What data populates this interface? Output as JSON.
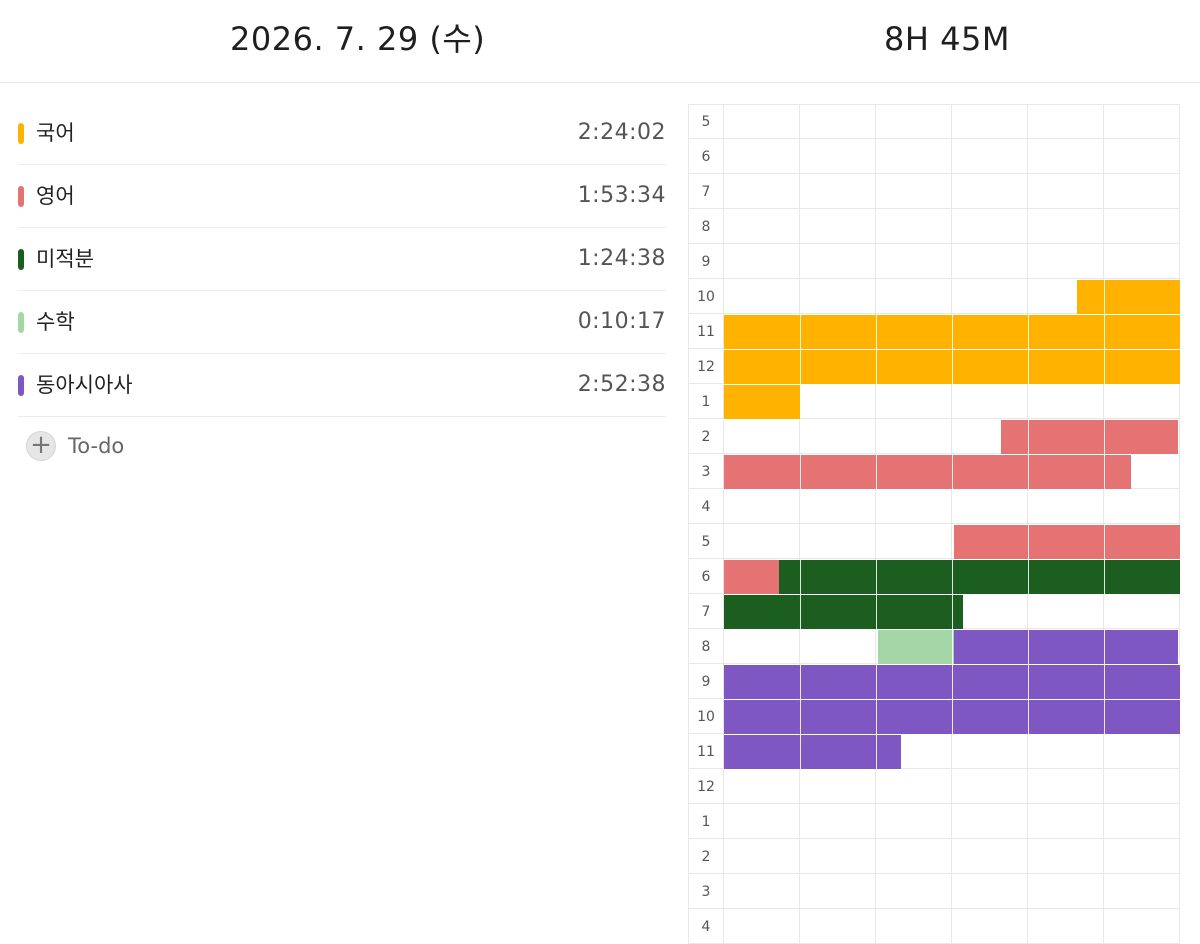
{
  "header": {
    "date": "2026. 7. 29 (수)",
    "total_time": "8H 45M"
  },
  "subjects": [
    {
      "name": "국어",
      "time": "2:24:02",
      "color": "#FFB300"
    },
    {
      "name": "영어",
      "time": "1:53:34",
      "color": "#E57373"
    },
    {
      "name": "미적분",
      "time": "1:24:38",
      "color": "#1B5E20"
    },
    {
      "name": "수학",
      "time": "0:10:17",
      "color": "#A5D6A7"
    },
    {
      "name": "동아시아사",
      "time": "2:52:38",
      "color": "#7E57C2"
    }
  ],
  "todo": {
    "icon": "plus-icon",
    "label": "To-do"
  },
  "timetable": {
    "hours": [
      "5",
      "6",
      "7",
      "8",
      "9",
      "10",
      "11",
      "12",
      "1",
      "2",
      "3",
      "4",
      "5",
      "6",
      "7",
      "8",
      "9",
      "10",
      "11",
      "12",
      "1",
      "2",
      "3",
      "4"
    ],
    "slots_per_hour": 6,
    "sessions": [
      {
        "subject": "국어",
        "row": 5,
        "start": 4.65,
        "end": 6.0
      },
      {
        "subject": "국어",
        "row": 6,
        "start": 0,
        "end": 6.0
      },
      {
        "subject": "국어",
        "row": 7,
        "start": 0,
        "end": 6.0
      },
      {
        "subject": "국어",
        "row": 8,
        "start": 0,
        "end": 1.0
      },
      {
        "subject": "영어",
        "row": 9,
        "start": 3.65,
        "end": 5.97
      },
      {
        "subject": "영어",
        "row": 10,
        "start": 0,
        "end": 5.35
      },
      {
        "subject": "영어",
        "row": 12,
        "start": 3.03,
        "end": 6.0
      },
      {
        "subject": "영어",
        "row": 13,
        "start": 0,
        "end": 0.72
      },
      {
        "subject": "미적분",
        "row": 13,
        "start": 0.72,
        "end": 6.0
      },
      {
        "subject": "미적분",
        "row": 14,
        "start": 0,
        "end": 3.15
      },
      {
        "subject": "수학",
        "row": 15,
        "start": 2.02,
        "end": 3.03
      },
      {
        "subject": "동아시아사",
        "row": 15,
        "start": 3.03,
        "end": 5.97
      },
      {
        "subject": "동아시아사",
        "row": 16,
        "start": 0,
        "end": 6.0
      },
      {
        "subject": "동아시아사",
        "row": 17,
        "start": 0,
        "end": 6.0
      },
      {
        "subject": "동아시아사",
        "row": 18,
        "start": 0,
        "end": 2.33
      }
    ]
  }
}
